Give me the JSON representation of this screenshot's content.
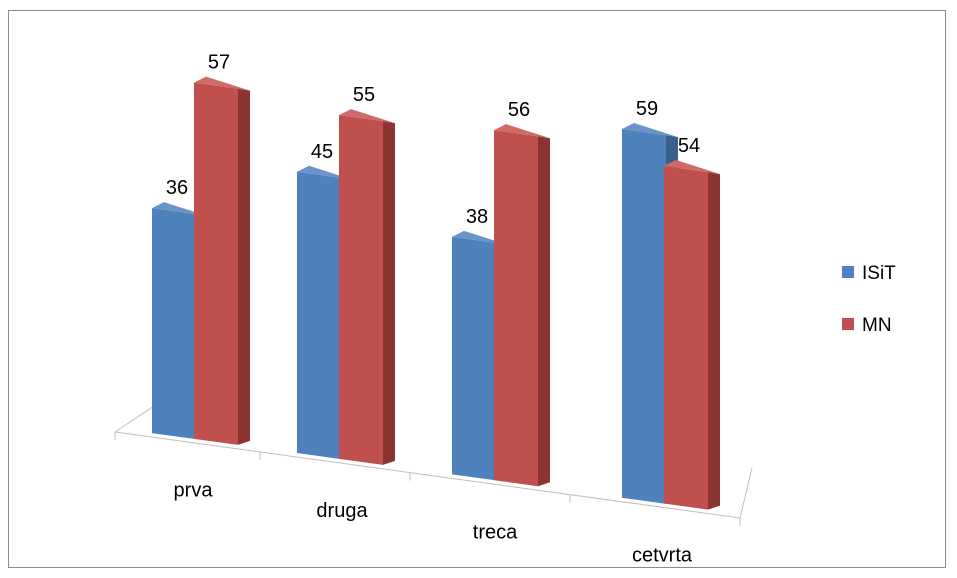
{
  "chart_data": {
    "type": "bar",
    "variant": "3d-clustered-column",
    "title": "",
    "xlabel": "",
    "ylabel": "",
    "categories": [
      "prva",
      "druga",
      "treca",
      "cetvrta"
    ],
    "series": [
      {
        "name": "ISiT",
        "values": [
          36,
          45,
          38,
          59
        ],
        "color": "#4F81BD",
        "side_color": "#3A5F8C",
        "top_color": "#6A94C8"
      },
      {
        "name": "MN",
        "values": [
          57,
          55,
          56,
          54
        ],
        "color": "#C0504D",
        "side_color": "#8C3432",
        "top_color": "#CF6A67"
      }
    ],
    "legend": {
      "position": "right"
    },
    "data_labels": true,
    "grid": false,
    "ylim": [
      0,
      65
    ]
  }
}
